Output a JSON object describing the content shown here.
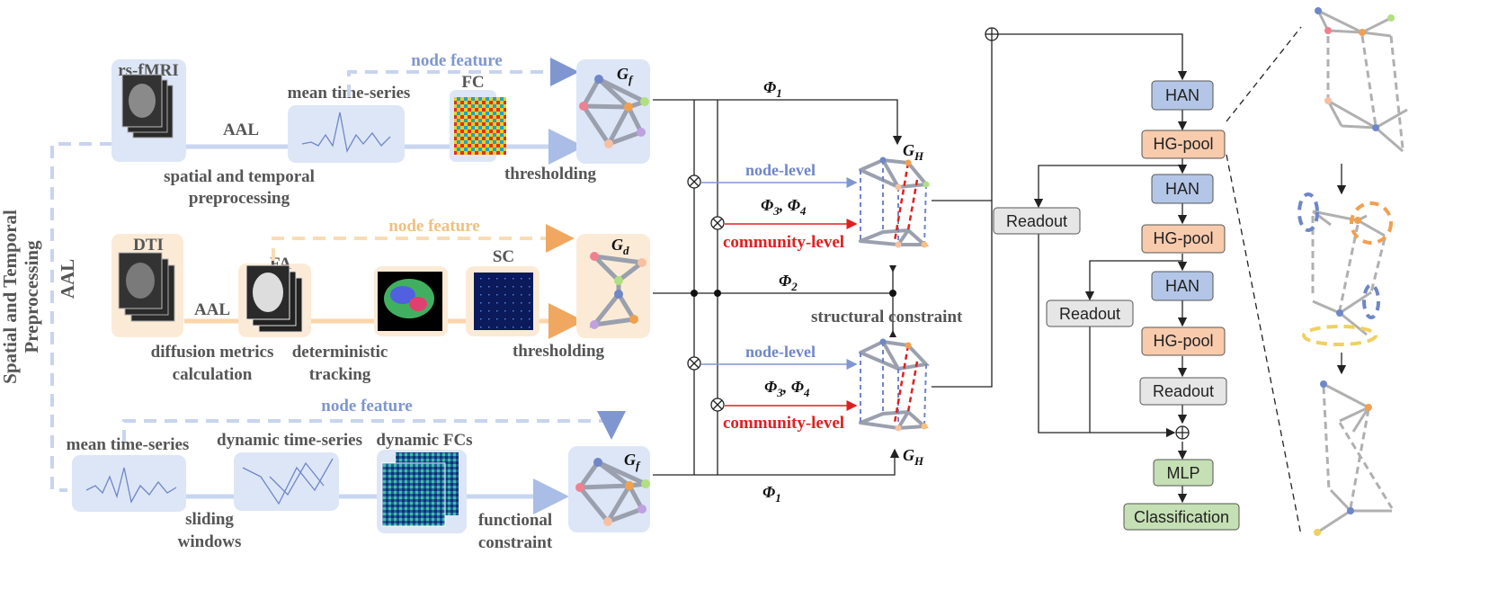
{
  "colors": {
    "blue_panel": "#dde6f6",
    "orange_panel": "#fbebd6",
    "blue_link": "#7f96d0",
    "orange_link": "#f0c080",
    "red": "#e02020",
    "han_fill": "#b4c6e7",
    "hgpool_fill": "#f8cbad",
    "readout_fill": "#e7e6e6",
    "mlp_fill": "#c5e0b4"
  },
  "labels": {
    "left_rotated": "Spatial and Temporal Preprocessing",
    "left_rotated_line1": "Spatial and Temporal",
    "left_rotated_line2": "Preprocessing",
    "aal_side": "AAL",
    "rsfmri": "rs-fMRI",
    "aal1": "AAL",
    "mean_ts_top": "mean time-series",
    "fc": "FC",
    "node_feature_1": "node feature",
    "gf": "G",
    "gf_sub": "f",
    "spatial1": "spatial and temporal",
    "spatial2": "preprocessing",
    "thresholding1": "thresholding",
    "dti": "DTI",
    "fa": "FA",
    "aal2": "AAL",
    "sc": "SC",
    "node_feature_2": "node feature",
    "gd": "G",
    "gd_sub": "d",
    "diff1": "diffusion metrics",
    "diff2": "calculation",
    "det1": "deterministic",
    "det2": "tracking",
    "thresholding2": "thresholding",
    "node_feature_3": "node feature",
    "mean_ts_bot": "mean time-series",
    "dyn_ts": "dynamic time-series",
    "dyn_fcs": "dynamic FCs",
    "ghf": "G",
    "ghf_sub": "f",
    "sliding1": "sliding",
    "sliding2": "windows",
    "func1": "functional",
    "func2": "constraint",
    "phi1": "Φ",
    "phi1_sub": "1",
    "phi2": "Φ",
    "phi2_sub": "2",
    "phi34": "Φ",
    "phi34_a": "3",
    "phi34_mid": ", Φ",
    "phi34_b": "4",
    "phih34": "Φ",
    "phih34_a": "3",
    "phih34_mid": ", Φ",
    "phih34_b": "4",
    "phih1": "Φ",
    "phih1_sub": "1",
    "node_level_1": "node-level",
    "community_level_1": "community-level",
    "node_level_2": "node-level",
    "community_level_2": "community-level",
    "structural_constraint": "structural constraint",
    "gh": "G",
    "gh_sub": "H",
    "ghh": "G",
    "ghh_sub": "H"
  },
  "pipeline": {
    "han1": "HAN",
    "hgpool1": "HG-pool",
    "han2": "HAN",
    "hgpool2": "HG-pool",
    "han3": "HAN",
    "hgpool3": "HG-pool",
    "readout1": "Readout",
    "readout2": "Readout",
    "readout3": "Readout",
    "mlp": "MLP",
    "classification": "Classification"
  }
}
